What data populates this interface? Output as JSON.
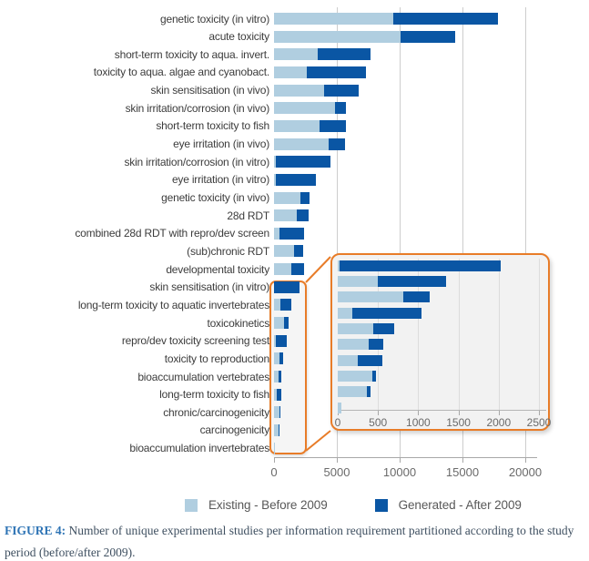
{
  "caption": {
    "label": "FIGURE 4:",
    "text": " Number of unique experimental studies per information requirement partitioned according to the study period (before/after 2009)."
  },
  "legend": {
    "items": [
      {
        "label": "Existing - Before 2009",
        "color": "#b0cee0"
      },
      {
        "label": "Generated - After 2009",
        "color": "#0a56a4"
      }
    ]
  },
  "colors": {
    "existing": "#b0cee0",
    "generated": "#0a56a4",
    "gridline": "#cdcdcd",
    "axis": "#a8a8a8",
    "zoom_outline_orange": "#e87c28",
    "inset_background": "#f2f2f2",
    "caption_accent": "#2e74b5"
  },
  "chart_data": {
    "type": "bar",
    "orientation": "horizontal",
    "stacked": true,
    "title": "",
    "xlabel": "",
    "ylabel": "",
    "categories": [
      "genetic toxicity (in vitro)",
      "acute toxicity",
      "short-term toxicity to aqua. invert.",
      "toxicity to aqua. algae and cyanobact.",
      "skin sensitisation (in vivo)",
      "skin irritation/corrosion (in vivo)",
      "short-term toxicity to fish",
      "eye irritation (in vivo)",
      "skin irritation/corrosion (in vitro)",
      "eye irritation (in vitro)",
      "genetic toxicity (in vivo)",
      "28d RDT",
      "combined 28d RDT with repro/dev screen",
      "(sub)chronic RDT",
      "developmental toxicity",
      "skin sensitisation (in vitro)",
      "long-term toxicity to aquatic invertebrates",
      "toxicokinetics",
      "repro/dev toxicity screening test",
      "toxicity to reproduction",
      "bioaccumulation vertebrates",
      "long-term toxicity to fish",
      "chronic/carcinogenicity",
      "carcinogenicity",
      "bioaccumulation invertebrates"
    ],
    "series": [
      {
        "name": "Existing - Before 2009",
        "color": "#b0cee0",
        "values": [
          9500,
          10100,
          3470,
          2620,
          3970,
          4860,
          3610,
          4380,
          120,
          120,
          2100,
          1780,
          410,
          1610,
          1370,
          25,
          500,
          815,
          180,
          440,
          385,
          250,
          425,
          360,
          40
        ]
      },
      {
        "name": "Generated - After 2009",
        "color": "#0a56a4",
        "values": [
          8300,
          4300,
          4200,
          4670,
          2770,
          870,
          2120,
          1250,
          4400,
          3250,
          750,
          990,
          2000,
          720,
          1040,
          2000,
          850,
          330,
          860,
          260,
          185,
          305,
          50,
          50,
          0
        ]
      }
    ],
    "x_axis": {
      "ticks": [
        0,
        5000,
        10000,
        15000,
        20000
      ],
      "max": 20900,
      "grid": true
    },
    "inset": {
      "description": "magnified view of the 10 smallest rows",
      "category_start_index": 15,
      "category_end_index": 24,
      "x_axis": {
        "ticks": [
          0,
          500,
          1000,
          1500,
          2000,
          2500
        ],
        "max": 2740,
        "grid": true
      }
    }
  }
}
